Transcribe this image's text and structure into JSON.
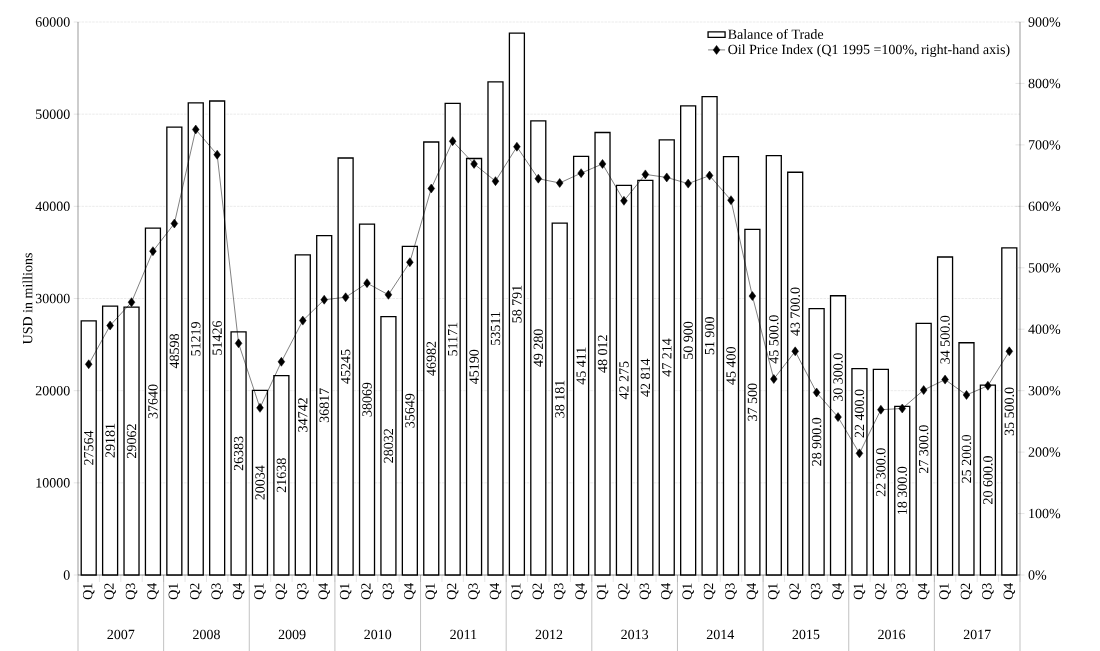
{
  "chart_data": {
    "type": "bar",
    "ylabel": "USD in millions",
    "grid": "y",
    "legend": "top right",
    "categories": [
      "Q1",
      "Q2",
      "Q3",
      "Q4",
      "Q1",
      "Q2",
      "Q3",
      "Q4",
      "Q1",
      "Q2",
      "Q3",
      "Q4",
      "Q1",
      "Q2",
      "Q3",
      "Q4",
      "Q1",
      "Q2",
      "Q3",
      "Q4",
      "Q1",
      "Q2",
      "Q3",
      "Q4",
      "Q1",
      "Q2",
      "Q3",
      "Q4",
      "Q1",
      "Q2",
      "Q3",
      "Q4",
      "Q1",
      "Q2",
      "Q3",
      "Q4",
      "Q1",
      "Q2",
      "Q3",
      "Q4",
      "Q1",
      "Q2",
      "Q3",
      "Q4"
    ],
    "annotations": [
      "2007",
      "2008",
      "2009",
      "2010",
      "2011",
      "2012",
      "2013",
      "2014",
      "2015",
      "2016",
      "2017"
    ],
    "series": [
      {
        "name": "Balance of Trade",
        "color": "#ffffff",
        "values": [
          27564,
          29181,
          29062,
          37640,
          48598,
          51219,
          51426,
          26383,
          20034,
          21638,
          34742,
          36817,
          45245,
          38069,
          28032,
          35649,
          46982,
          51171,
          45190,
          53511,
          58791,
          49280,
          38181,
          45411,
          48012,
          42275,
          42814,
          47214,
          50900,
          51900,
          45400,
          37500,
          45500,
          43700,
          28900,
          30300,
          22400,
          22300,
          18300,
          27300,
          34500,
          25200,
          20600,
          35500
        ],
        "value_labels": [
          "27564",
          "29181",
          "29062",
          "37640",
          "48598",
          "51219",
          "51426",
          "26383",
          "20034",
          "21638",
          "34742",
          "36817",
          "45245",
          "38069",
          "28032",
          "35649",
          "46982",
          "51171",
          "45190",
          "53511",
          "58 791",
          "49 280",
          "38 181",
          "45 411",
          "48 012",
          "42 275",
          "42 814",
          "47 214",
          "50 900",
          "51 900",
          "45 400",
          "37 500",
          "45 500.0",
          "43 700.0",
          "28 900.0",
          "30 300.0",
          "22 400.0",
          "22 300.0",
          "18 300.0",
          "27 300.0",
          "34 500.0",
          "25 200.0",
          "20 600.0",
          "35 500.0"
        ]
      },
      {
        "name": "Oil Price Index (Q1 1995 =100%, right-hand axis)",
        "type": "line",
        "axis": "y2",
        "color": "#000000",
        "marker": "diamond",
        "values": [
          343,
          406,
          444,
          527,
          572,
          725,
          684,
          377,
          272,
          347,
          414,
          448,
          452,
          475,
          456,
          509,
          629,
          706,
          669,
          641,
          697,
          645,
          638,
          654,
          669,
          609,
          652,
          647,
          637,
          650,
          610,
          454,
          319,
          364,
          297,
          257,
          198,
          269,
          271,
          301,
          318,
          293,
          308,
          364
        ]
      }
    ],
    "ylim": [
      0,
      60000
    ],
    "yticks": [
      0,
      10000,
      20000,
      30000,
      40000,
      50000,
      60000
    ],
    "y2lim": [
      0,
      900
    ],
    "y2ticks": [
      {
        "value": 0,
        "label": "0%"
      },
      {
        "value": 100,
        "label": "100%"
      },
      {
        "value": 200,
        "label": "200%"
      },
      {
        "value": 300,
        "label": "300%"
      },
      {
        "value": 400,
        "label": "400%"
      },
      {
        "value": 500,
        "label": "500%"
      },
      {
        "value": 600,
        "label": "600%"
      },
      {
        "value": 700,
        "label": "700%"
      },
      {
        "value": 800,
        "label": "800%"
      },
      {
        "value": 900,
        "label": "900%"
      }
    ]
  }
}
